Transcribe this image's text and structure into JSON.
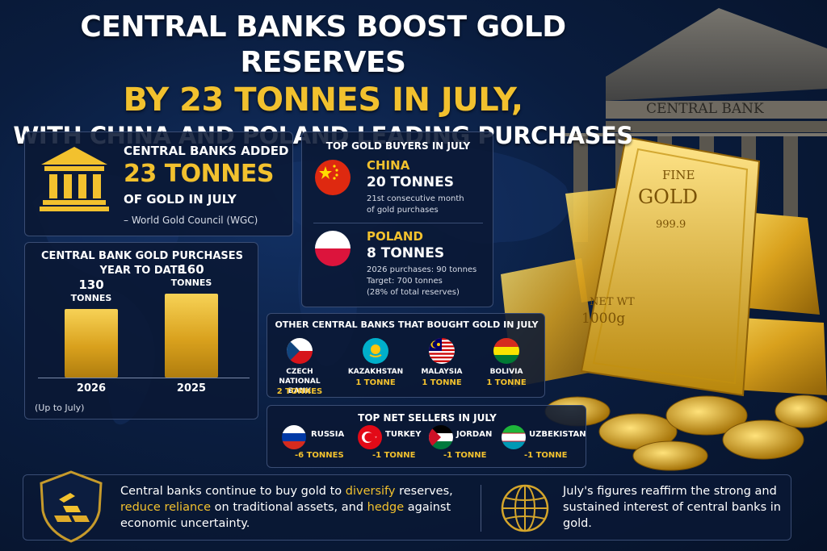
{
  "headline": {
    "line1": "CENTRAL BANKS BOOST GOLD RESERVES",
    "line2": "BY 23 TONNES IN JULY,",
    "line3": "WITH CHINA AND POLAND LEADING PURCHASES"
  },
  "building_sign": "CENTRAL BANK",
  "gold_bar": {
    "line1": "FINE",
    "line2": "GOLD",
    "line3": "999.9",
    "line4": "NET WT",
    "line5": "1000g"
  },
  "added_panel": {
    "icon": "bank-building-icon",
    "line1": "CENTRAL BANKS ADDED",
    "line2": "23 TONNES",
    "line3": "OF GOLD IN JULY",
    "source": "– World Gold Council (WGC)"
  },
  "ytd_panel": {
    "title_line1": "CENTRAL BANK GOLD PURCHASES",
    "title_line2": "YEAR TO DATE",
    "note": "(Up to July)"
  },
  "chart_data": {
    "type": "bar",
    "title": "CENTRAL BANK GOLD PURCHASES YEAR TO DATE",
    "categories": [
      "2026",
      "2025"
    ],
    "values": [
      130,
      160
    ],
    "value_labels": [
      "130",
      "160"
    ],
    "unit_label": "TONNES",
    "ylim": [
      0,
      160
    ],
    "grid": false
  },
  "top_buyers": {
    "title": "TOP GOLD BUYERS IN JULY",
    "buyers": [
      {
        "country": "CHINA",
        "amount": "20 TONNES",
        "note_line1": "21st consecutive month",
        "note_line2": "of gold purchases",
        "note_line3": "",
        "flag": "china-flag-icon"
      },
      {
        "country": "POLAND",
        "amount": "8 TONNES",
        "note_line1": "2026 purchases: 90 tonnes",
        "note_line2": "Target: 700 tonnes",
        "note_line3": "(28% of total reserves)",
        "flag": "poland-flag-icon"
      }
    ]
  },
  "other_buyers": {
    "title": "OTHER CENTRAL BANKS THAT BOUGHT GOLD IN JULY",
    "items": [
      {
        "name_line1": "CZECH",
        "name_line2": "NATIONAL BANK",
        "amount": "2 TONNES",
        "flag": "czech-flag-icon"
      },
      {
        "name_line1": "KAZAKHSTAN",
        "name_line2": "",
        "amount": "1 TONNE",
        "flag": "kazakhstan-flag-icon"
      },
      {
        "name_line1": "MALAYSIA",
        "name_line2": "",
        "amount": "1 TONNE",
        "flag": "malaysia-flag-icon"
      },
      {
        "name_line1": "BOLIVIA",
        "name_line2": "",
        "amount": "1 TONNE",
        "flag": "bolivia-flag-icon"
      }
    ]
  },
  "top_sellers": {
    "title": "TOP NET SELLERS IN JULY",
    "items": [
      {
        "name": "RUSSIA",
        "amount": "-6 TONNES",
        "flag": "russia-flag-icon"
      },
      {
        "name": "TURKEY",
        "amount": "-1 TONNE",
        "flag": "turkey-flag-icon"
      },
      {
        "name": "JORDAN",
        "amount": "-1 TONNE",
        "flag": "jordan-flag-icon"
      },
      {
        "name": "UZBEKISTAN",
        "amount": "-1 TONNE",
        "flag": "uzbekistan-flag-icon"
      }
    ]
  },
  "bottom": {
    "left": {
      "icon": "gold-shield-icon",
      "p1": "Central banks continue to buy gold to ",
      "h1": "diversify",
      "p2": " reserves, ",
      "h2": "reduce reliance",
      "p3": " on traditional assets, and ",
      "h3": "hedge",
      "p4": " against economic uncertainty."
    },
    "right": {
      "icon": "globe-icon",
      "text": "July's figures reaffirm the strong and sustained interest of central banks in gold."
    }
  },
  "colors": {
    "accent_gold": "#f2c12e",
    "background_navy": "#0a1d3f",
    "panel_bg": "#0a1834",
    "panel_border": "#3a4d74"
  }
}
